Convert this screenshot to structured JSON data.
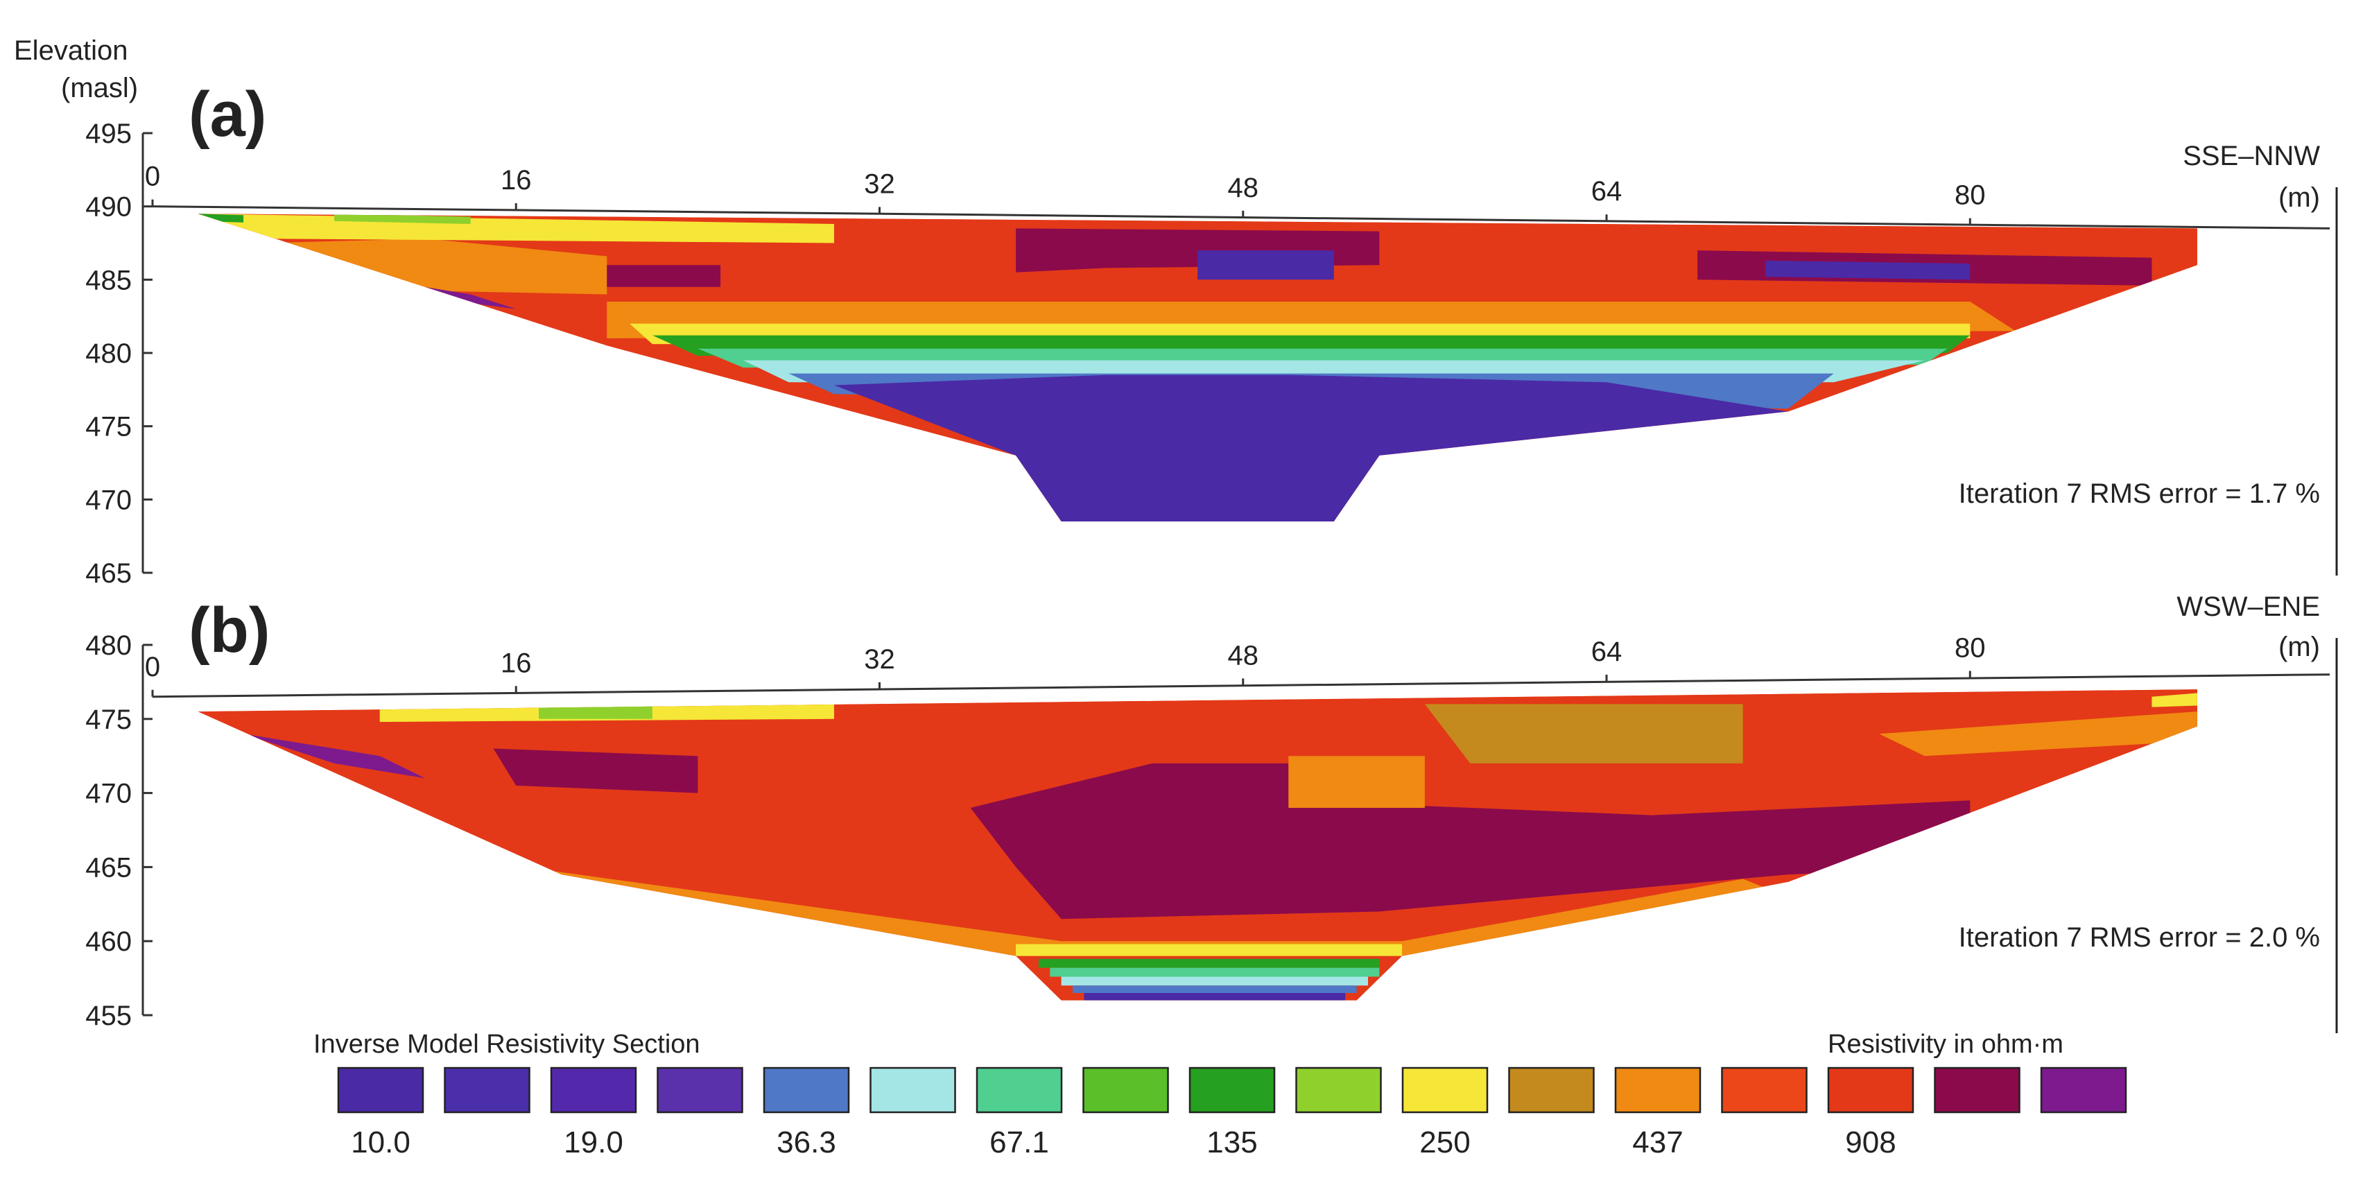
{
  "y_axis_title": [
    "Elevation",
    "(masl)"
  ],
  "legend": {
    "title": "Inverse Model Resistivity Section",
    "unit_label": "Resistivity in ohm·m",
    "colors": [
      "#4b2aa6",
      "#4a2eaa",
      "#5428ab",
      "#5a30ab",
      "#4f78c6",
      "#a4e6e6",
      "#4fcf90",
      "#5abf28",
      "#25a020",
      "#8fd02d",
      "#f6e637",
      "#c48a1d",
      "#f08a12",
      "#eb4718",
      "#e33918",
      "#8b0a4c",
      "#7d1a8e"
    ],
    "values": [
      {
        "after_index": 0,
        "label": "10.0"
      },
      {
        "after_index": 2,
        "label": "19.0"
      },
      {
        "after_index": 4,
        "label": "36.3"
      },
      {
        "after_index": 6,
        "label": "67.1"
      },
      {
        "after_index": 8,
        "label": "135"
      },
      {
        "after_index": 10,
        "label": "250"
      },
      {
        "after_index": 12,
        "label": "437"
      },
      {
        "after_index": 14,
        "label": "908"
      }
    ]
  },
  "chart_data": [
    {
      "type": "heatmap",
      "panel_label": "(a)",
      "direction": "SSE–NNW",
      "x_unit": "(m)",
      "x_ticks": [
        0,
        16,
        32,
        48,
        64,
        80
      ],
      "y_ticks": [
        495,
        490,
        485,
        480,
        475,
        470,
        465
      ],
      "ylim": [
        465,
        495
      ],
      "xlim": [
        0,
        94
      ],
      "rms_text": "Iteration 7 RMS error = 1.7 %",
      "surface": [
        [
          0,
          490.0
        ],
        [
          94,
          488.5
        ]
      ],
      "section_outline": [
        [
          2,
          489.5
        ],
        [
          20,
          480.5
        ],
        [
          38,
          473.0
        ],
        [
          40,
          468.5
        ],
        [
          52,
          468.5
        ],
        [
          54,
          473.0
        ],
        [
          72,
          476.0
        ],
        [
          90,
          486.0
        ],
        [
          90,
          488.5
        ],
        [
          2,
          489.5
        ]
      ],
      "zones": [
        {
          "color_index": 14,
          "outline": [
            [
              2,
              489.5
            ],
            [
              90,
              488.5
            ],
            [
              90,
              486.0
            ],
            [
              80,
              482.0
            ],
            [
              20,
              480.5
            ]
          ]
        },
        {
          "color_index": 12,
          "outline": [
            [
              5,
              487.5
            ],
            [
              12,
              487.8
            ],
            [
              20,
              486.6
            ],
            [
              20,
              484.0
            ],
            [
              10,
              484.3
            ]
          ]
        },
        {
          "color_index": 10,
          "outline": [
            [
              2,
              489.5
            ],
            [
              30,
              488.8
            ],
            [
              30,
              487.5
            ],
            [
              5,
              487.8
            ]
          ]
        },
        {
          "color_index": 9,
          "outline": [
            [
              8,
              489.5
            ],
            [
              14,
              489.3
            ],
            [
              14,
              488.8
            ],
            [
              8,
              489.0
            ]
          ]
        },
        {
          "color_index": 8,
          "outline": [
            [
              2,
              489.5
            ],
            [
              4,
              489.4
            ],
            [
              4,
              488.9
            ],
            [
              2,
              489.0
            ]
          ]
        },
        {
          "color_index": 15,
          "outline": [
            [
              20,
              486.0
            ],
            [
              25,
              486.0
            ],
            [
              25,
              484.5
            ],
            [
              20,
              484.5
            ]
          ]
        },
        {
          "color_index": 15,
          "outline": [
            [
              38,
              488.5
            ],
            [
              54,
              488.3
            ],
            [
              54,
              486.0
            ],
            [
              42,
              485.8
            ],
            [
              38,
              485.5
            ]
          ]
        },
        {
          "color_index": 0,
          "outline": [
            [
              46,
              487.0
            ],
            [
              52,
              487.0
            ],
            [
              52,
              485.0
            ],
            [
              46,
              485.0
            ]
          ]
        },
        {
          "color_index": 15,
          "outline": [
            [
              68,
              487.0
            ],
            [
              88,
              486.5
            ],
            [
              88,
              484.6
            ],
            [
              68,
              485.0
            ]
          ]
        },
        {
          "color_index": 0,
          "outline": [
            [
              71,
              486.3
            ],
            [
              80,
              486.1
            ],
            [
              80,
              485.0
            ],
            [
              71,
              485.2
            ]
          ]
        },
        {
          "color_index": 16,
          "outline": [
            [
              8,
              485.5
            ],
            [
              14,
              484.0
            ],
            [
              16,
              483.0
            ],
            [
              10,
              484.2
            ]
          ]
        },
        {
          "color_index": 12,
          "outline": [
            [
              20,
              483.5
            ],
            [
              80,
              483.5
            ],
            [
              82,
              481.5
            ],
            [
              20,
              481.0
            ]
          ]
        },
        {
          "color_index": 10,
          "outline": [
            [
              21,
              482.0
            ],
            [
              80,
              482.0
            ],
            [
              80,
              481.0
            ],
            [
              22,
              480.6
            ]
          ]
        },
        {
          "color_index": 8,
          "outline": [
            [
              22,
              481.2
            ],
            [
              80,
              481.2
            ],
            [
              79,
              480.0
            ],
            [
              24,
              479.8
            ]
          ]
        },
        {
          "color_index": 6,
          "outline": [
            [
              24,
              480.3
            ],
            [
              79,
              480.3
            ],
            [
              78,
              479.2
            ],
            [
              26,
              479.0
            ]
          ]
        },
        {
          "color_index": 5,
          "outline": [
            [
              26,
              479.5
            ],
            [
              78,
              479.5
            ],
            [
              74,
              478.0
            ],
            [
              28,
              478.0
            ]
          ]
        },
        {
          "color_index": 4,
          "outline": [
            [
              28,
              478.6
            ],
            [
              74,
              478.6
            ],
            [
              72,
              476.2
            ],
            [
              30,
              477.2
            ]
          ]
        },
        {
          "color_index": 0,
          "outline": [
            [
              30,
              477.8
            ],
            [
              42,
              478.5
            ],
            [
              50,
              478.5
            ],
            [
              64,
              478.0
            ],
            [
              72,
              476.0
            ],
            [
              54,
              473.0
            ],
            [
              52,
              468.5
            ],
            [
              40,
              468.5
            ],
            [
              38,
              473.0
            ]
          ]
        }
      ]
    },
    {
      "type": "heatmap",
      "panel_label": "(b)",
      "direction": "WSW–ENE",
      "x_unit": "(m)",
      "x_ticks": [
        0,
        16,
        32,
        48,
        64,
        80
      ],
      "y_ticks": [
        480,
        475,
        470,
        465,
        460,
        455
      ],
      "ylim": [
        455,
        480
      ],
      "xlim": [
        0,
        94
      ],
      "rms_text": "Iteration 7 RMS error = 2.0 %",
      "surface": [
        [
          0,
          476.5
        ],
        [
          94,
          478.0
        ]
      ],
      "section_outline": [
        [
          2,
          475.5
        ],
        [
          18,
          464.5
        ],
        [
          38,
          459.0
        ],
        [
          40,
          456.0
        ],
        [
          53,
          456.0
        ],
        [
          55,
          459.0
        ],
        [
          72,
          464.0
        ],
        [
          90,
          474.5
        ],
        [
          90,
          477.0
        ],
        [
          2,
          475.5
        ]
      ],
      "zones": [
        {
          "color_index": 14,
          "outline": [
            [
              2,
              475.5
            ],
            [
              90,
              477.0
            ],
            [
              90,
              474.5
            ],
            [
              72,
              464.0
            ],
            [
              55,
              459.0
            ],
            [
              38,
              459.0
            ],
            [
              18,
              464.5
            ]
          ]
        },
        {
          "color_index": 12,
          "outline": [
            [
              14,
              465.5
            ],
            [
              40,
              460.0
            ],
            [
              55,
              460.0
            ],
            [
              70,
              464.2
            ],
            [
              72,
              463.0
            ],
            [
              55,
              459.0
            ],
            [
              38,
              459.0
            ],
            [
              18,
              464.5
            ]
          ]
        },
        {
          "color_index": 10,
          "outline": [
            [
              38,
              459.8
            ],
            [
              55,
              459.8
            ],
            [
              55,
              459.0
            ],
            [
              38,
              459.0
            ]
          ]
        },
        {
          "color_index": 10,
          "outline": [
            [
              10,
              476.0
            ],
            [
              30,
              476.3
            ],
            [
              30,
              475.0
            ],
            [
              10,
              474.8
            ]
          ]
        },
        {
          "color_index": 9,
          "outline": [
            [
              17,
              476.0
            ],
            [
              22,
              476.0
            ],
            [
              22,
              475.0
            ],
            [
              17,
              475.0
            ]
          ]
        },
        {
          "color_index": 16,
          "outline": [
            [
              4,
              474.0
            ],
            [
              10,
              472.5
            ],
            [
              12,
              471.0
            ],
            [
              8,
              472.0
            ]
          ]
        },
        {
          "color_index": 15,
          "outline": [
            [
              15,
              473.0
            ],
            [
              24,
              472.5
            ],
            [
              24,
              470.0
            ],
            [
              16,
              470.5
            ]
          ]
        },
        {
          "color_index": 15,
          "outline": [
            [
              36,
              469.0
            ],
            [
              44,
              472.0
            ],
            [
              50,
              472.0
            ],
            [
              50,
              469.5
            ],
            [
              66,
              468.5
            ],
            [
              80,
              469.5
            ],
            [
              80,
              465.0
            ],
            [
              72,
              464.5
            ],
            [
              54,
              462.0
            ],
            [
              40,
              461.5
            ],
            [
              38,
              465.0
            ]
          ]
        },
        {
          "color_index": 12,
          "outline": [
            [
              50,
              472.5
            ],
            [
              56,
              472.5
            ],
            [
              56,
              469.0
            ],
            [
              50,
              469.0
            ]
          ]
        },
        {
          "color_index": 11,
          "outline": [
            [
              56,
              476.0
            ],
            [
              70,
              476.0
            ],
            [
              70,
              472.0
            ],
            [
              58,
              472.0
            ]
          ]
        },
        {
          "color_index": 12,
          "outline": [
            [
              76,
              474.0
            ],
            [
              90,
              475.5
            ],
            [
              90,
              473.5
            ],
            [
              78,
              472.5
            ]
          ]
        },
        {
          "color_index": 10,
          "outline": [
            [
              88,
              476.5
            ],
            [
              92,
              477.0
            ],
            [
              92,
              476.0
            ],
            [
              88,
              475.8
            ]
          ]
        },
        {
          "color_index": 8,
          "outline": [
            [
              39,
              458.8
            ],
            [
              54,
              458.8
            ],
            [
              54,
              458.2
            ],
            [
              39,
              458.2
            ]
          ]
        },
        {
          "color_index": 6,
          "outline": [
            [
              39.5,
              458.2
            ],
            [
              54,
              458.2
            ],
            [
              54,
              457.6
            ],
            [
              39.5,
              457.6
            ]
          ]
        },
        {
          "color_index": 5,
          "outline": [
            [
              40,
              457.6
            ],
            [
              53.5,
              457.6
            ],
            [
              53.5,
              457.0
            ],
            [
              40,
              457.0
            ]
          ]
        },
        {
          "color_index": 4,
          "outline": [
            [
              40.5,
              457.0
            ],
            [
              53,
              457.0
            ],
            [
              53,
              456.5
            ],
            [
              40.5,
              456.5
            ]
          ]
        },
        {
          "color_index": 0,
          "outline": [
            [
              41,
              456.5
            ],
            [
              52.5,
              456.5
            ],
            [
              52.5,
              456.0
            ],
            [
              41,
              456.0
            ]
          ]
        }
      ]
    }
  ]
}
